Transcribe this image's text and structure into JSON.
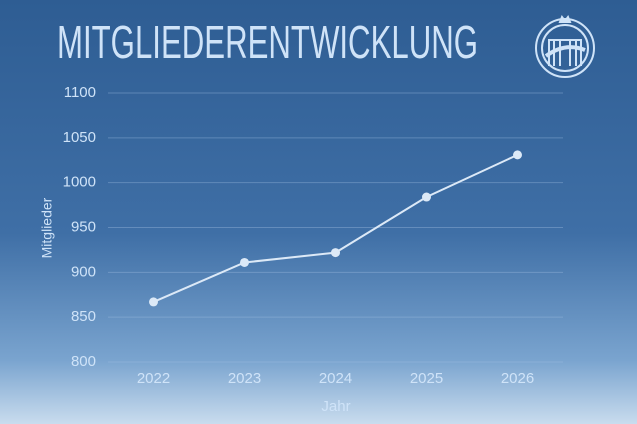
{
  "chart_data": {
    "type": "line",
    "title": "MITGLIEDERENTWICKLUNG",
    "x_label": "Jahr",
    "y_label": "Mitglieder",
    "categories": [
      "2022",
      "2023",
      "2024",
      "2025",
      "2026"
    ],
    "values": [
      867,
      911,
      922,
      984,
      1031
    ],
    "color": "#dce9f7",
    "ylim": [
      800,
      1100
    ],
    "yticks": [
      800,
      850,
      900,
      950,
      1000,
      1050,
      1100
    ],
    "grid": true
  }
}
